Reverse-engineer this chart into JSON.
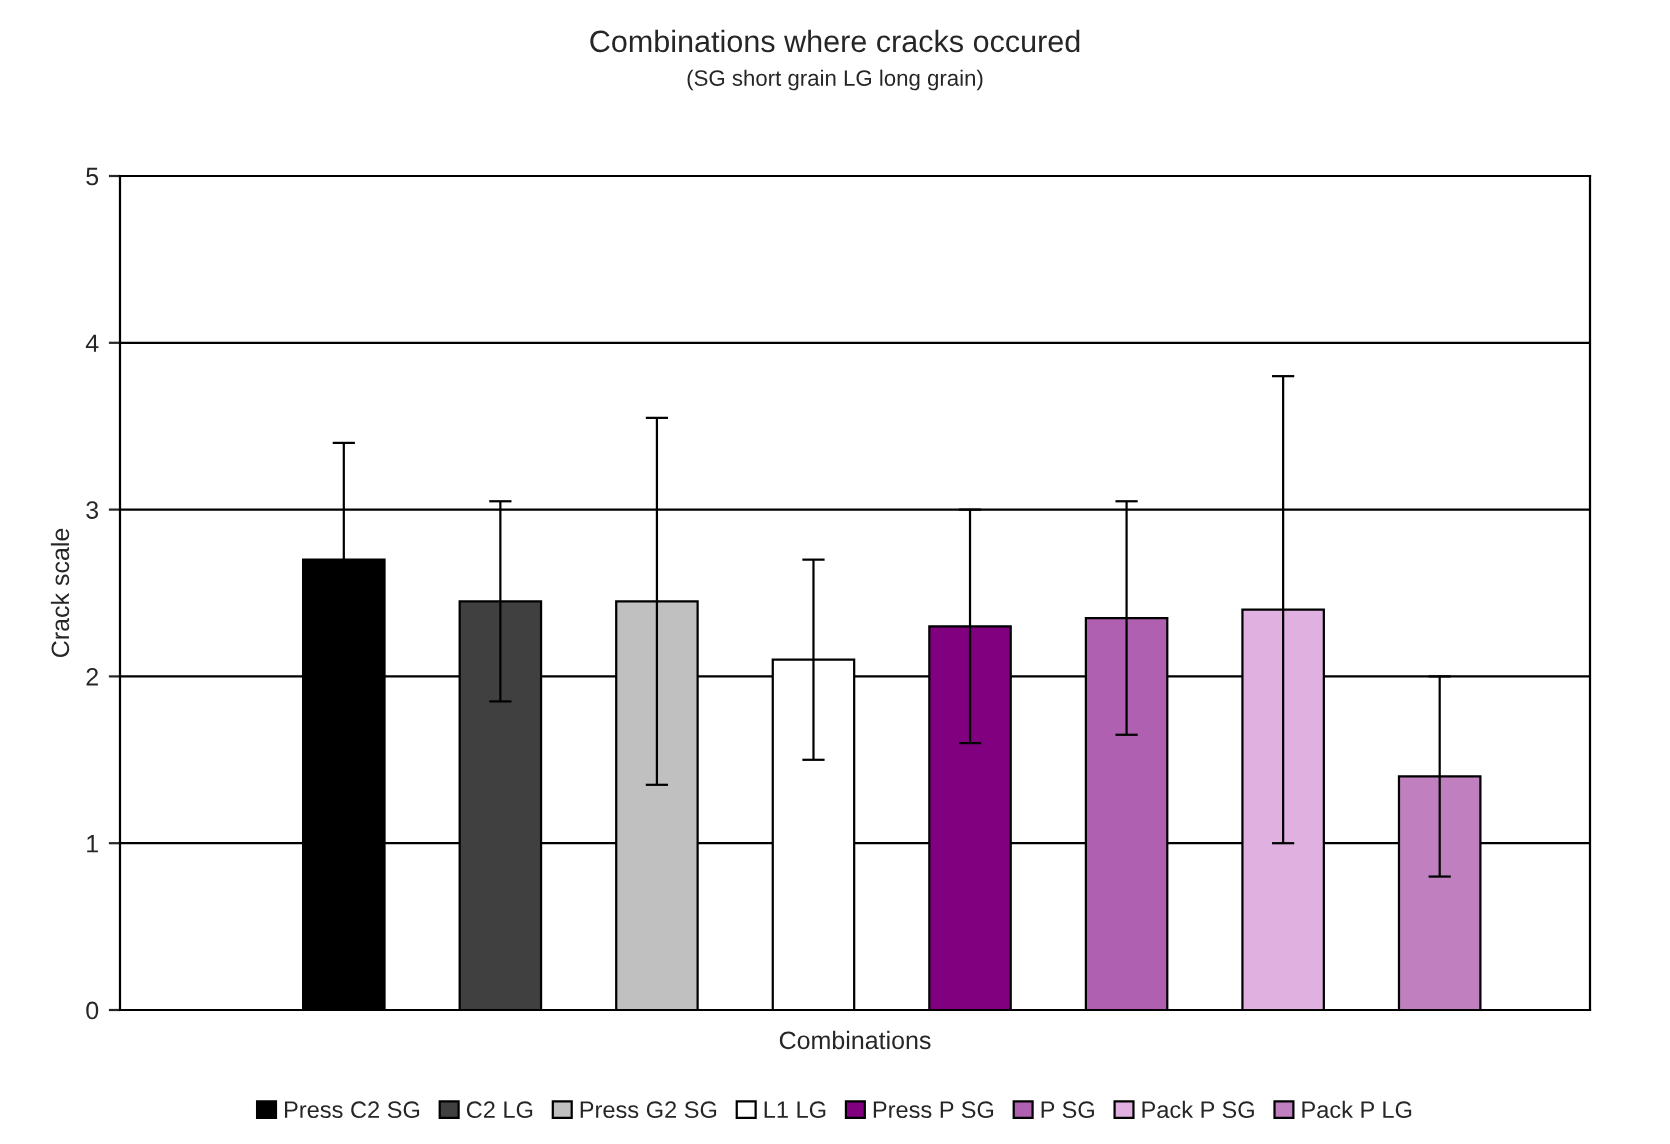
{
  "chart_data": {
    "type": "bar",
    "title": "Combinations where cracks occured",
    "subtitle": "(SG short grain LG long grain)",
    "xlabel": "Combinations",
    "ylabel": "Crack scale",
    "categories": [
      null
    ],
    "series": [
      {
        "name": "Press C2 SG",
        "color": "#000000",
        "values": [
          2.7
        ],
        "errors": [
          0.7
        ]
      },
      {
        "name": "C2 LG",
        "color": "#404040",
        "values": [
          2.45
        ],
        "errors": [
          0.6
        ]
      },
      {
        "name": "Press G2 SG",
        "color": "#c0c0c0",
        "values": [
          2.45
        ],
        "errors": [
          1.1
        ]
      },
      {
        "name": "L1 LG",
        "color": "#ffffff",
        "values": [
          2.1
        ],
        "errors": [
          0.6
        ]
      },
      {
        "name": "Press P SG",
        "color": "#800080",
        "values": [
          2.3
        ],
        "errors": [
          0.7
        ]
      },
      {
        "name": "P SG",
        "color": "#b060b0",
        "values": [
          2.35
        ],
        "errors": [
          0.7
        ]
      },
      {
        "name": "Pack P SG",
        "color": "#e0b0e0",
        "values": [
          2.4
        ],
        "errors": [
          1.4
        ]
      },
      {
        "name": "Pack P LG",
        "color": "#c080c0",
        "values": [
          1.4
        ],
        "errors": [
          0.6
        ]
      }
    ],
    "ylim": [
      0,
      5
    ],
    "yticks": [
      0,
      1,
      2,
      3,
      4,
      5
    ],
    "grid": "y",
    "legend": "bottom"
  }
}
